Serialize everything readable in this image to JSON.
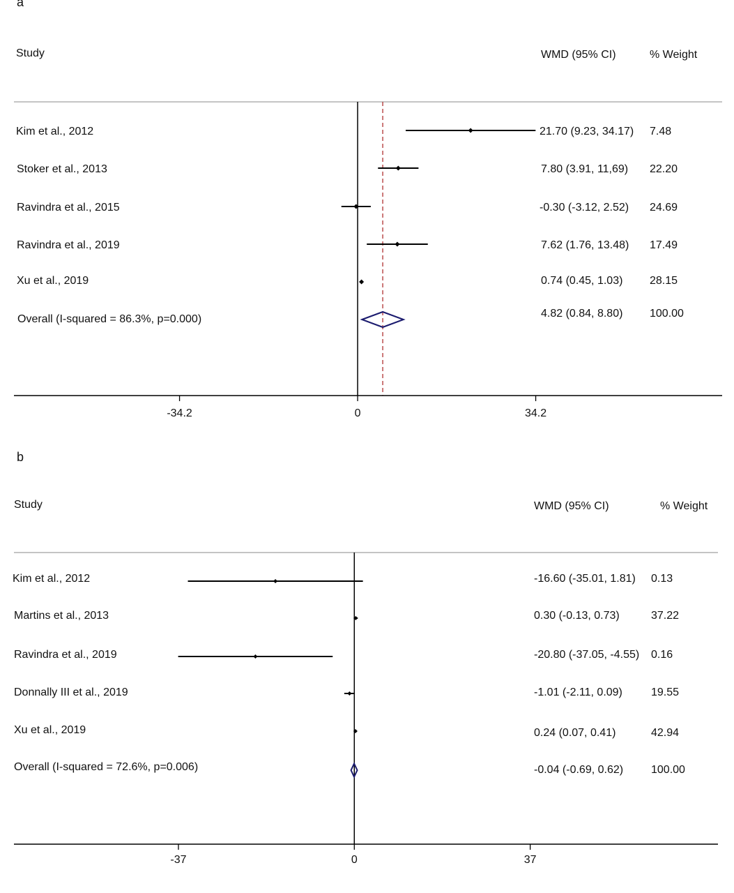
{
  "chart_data": [
    {
      "type": "forest",
      "panel_label": "a",
      "columns": {
        "study": "Study",
        "estimate": "WMD (95% CI)",
        "weight": "% Weight"
      },
      "studies": [
        {
          "study": "Kim et al., 2012",
          "est": 21.7,
          "lo": 9.23,
          "hi": 34.17,
          "ci_text": "21.70 (9.23, 34.17)",
          "weight": "7.48"
        },
        {
          "study": "Stoker et al., 2013",
          "est": 7.8,
          "lo": 3.91,
          "hi": 11.69,
          "ci_text": "7.80 (3.91, 11,69)",
          "weight": "22.20"
        },
        {
          "study": "Ravindra et al., 2015",
          "est": -0.3,
          "lo": -3.12,
          "hi": 2.52,
          "ci_text": "-0.30 (-3.12, 2.52)",
          "weight": "24.69"
        },
        {
          "study": "Ravindra et al., 2019",
          "est": 7.62,
          "lo": 1.76,
          "hi": 13.48,
          "ci_text": "7.62 (1.76, 13.48)",
          "weight": "17.49"
        },
        {
          "study": "Xu et al., 2019",
          "est": 0.74,
          "lo": 0.45,
          "hi": 1.03,
          "ci_text": "0.74 (0.45, 1.03)",
          "weight": "28.15"
        }
      ],
      "overall": {
        "study": "Overall (I-squared = 86.3%, p=0.000)",
        "est": 4.82,
        "lo": 0.84,
        "hi": 8.8,
        "ci_text": "4.82 (0.84, 8.80)",
        "weight": "100.00"
      },
      "x_ticks": [
        -34.2,
        0,
        34.2
      ],
      "x_tick_labels": [
        "-34.2",
        "0",
        "34.2"
      ],
      "xlim": [
        -66,
        70
      ],
      "reference_line": 0,
      "overall_line": true,
      "colors": {
        "marker": "#000000",
        "diamond": "#1a1a6e",
        "overall_line": "#b03030",
        "rule": "#b0b0b0"
      }
    },
    {
      "type": "forest",
      "panel_label": "b",
      "columns": {
        "study": "Study",
        "estimate": "WMD (95% CI)",
        "weight": "% Weight"
      },
      "studies": [
        {
          "study": "Kim et al., 2012",
          "est": -16.6,
          "lo": -35.01,
          "hi": 1.81,
          "ci_text": "-16.60 (-35.01, 1.81)",
          "weight": "0.13"
        },
        {
          "study": "Martins et al., 2013",
          "est": 0.3,
          "lo": -0.13,
          "hi": 0.73,
          "ci_text": "0.30 (-0.13, 0.73)",
          "weight": "37.22"
        },
        {
          "study": "Ravindra et al., 2019",
          "est": -20.8,
          "lo": -37.05,
          "hi": -4.55,
          "ci_text": "-20.80 (-37.05, -4.55)",
          "weight": "0.16"
        },
        {
          "study": "Donnally III et al., 2019",
          "est": -1.01,
          "lo": -2.11,
          "hi": 0.09,
          "ci_text": "-1.01 (-2.11, 0.09)",
          "weight": "19.55"
        },
        {
          "study": "Xu et al., 2019",
          "est": 0.24,
          "lo": 0.07,
          "hi": 0.41,
          "ci_text": "0.24 (0.07, 0.41)",
          "weight": "42.94"
        }
      ],
      "overall": {
        "study": "Overall (I-squared = 72.6%, p=0.006)",
        "est": -0.04,
        "lo": -0.69,
        "hi": 0.62,
        "ci_text": "-0.04 (-0.69, 0.62)",
        "weight": "100.00"
      },
      "x_ticks": [
        -37,
        0,
        37
      ],
      "x_tick_labels": [
        "-37",
        "0",
        "37"
      ],
      "xlim": [
        -71.6,
        76.5
      ],
      "reference_line": 0,
      "overall_line": false,
      "colors": {
        "marker": "#000000",
        "diamond": "#1a1a6e",
        "overall_line": "#b03030",
        "rule": "#b0b0b0"
      }
    }
  ]
}
